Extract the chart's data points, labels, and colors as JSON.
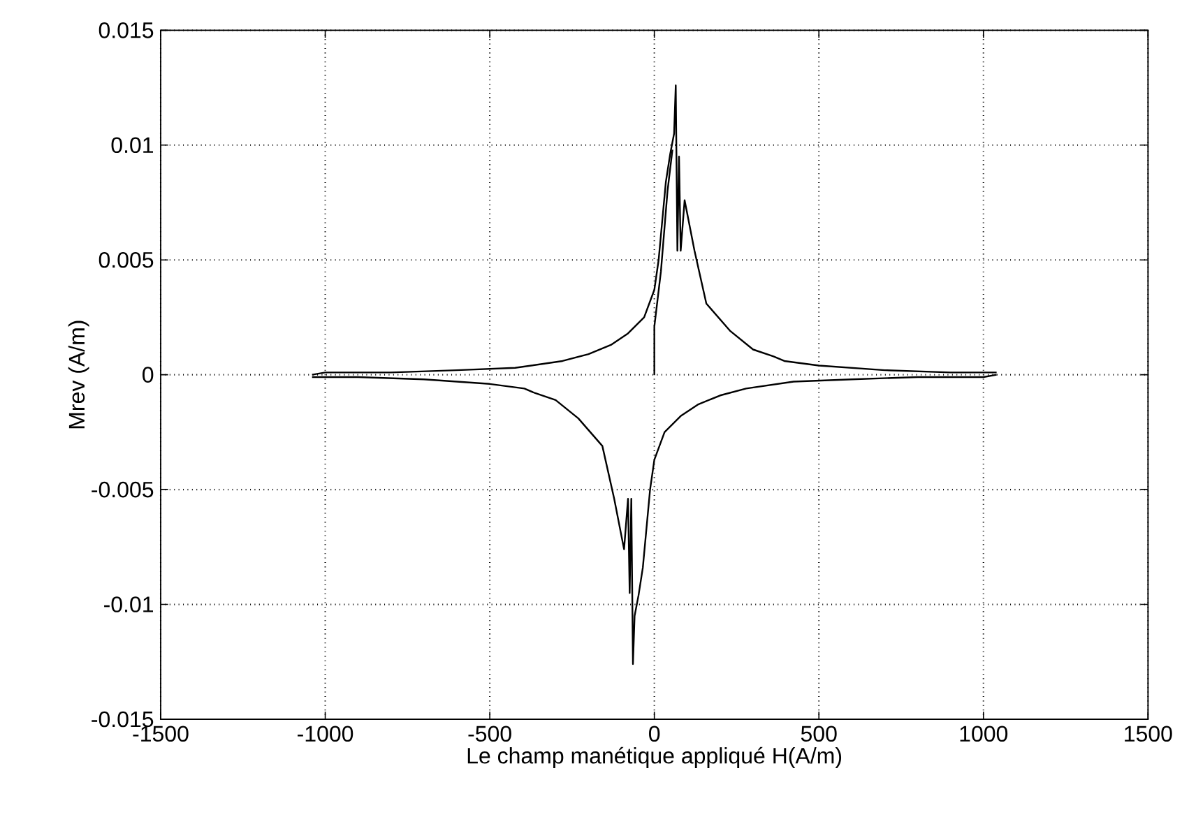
{
  "chart_data": {
    "type": "line",
    "xlabel": "Le champ manétique appliqué H(A/m)",
    "ylabel": "Mrev (A/m)",
    "xlim": [
      -1500,
      1500
    ],
    "ylim": [
      -0.015,
      0.015
    ],
    "xticks": [
      -1500,
      -1000,
      -500,
      0,
      500,
      1000,
      1500
    ],
    "yticks": [
      -0.015,
      -0.01,
      -0.005,
      0,
      0.005,
      0.01,
      0.015
    ],
    "grid": true,
    "line_style": "solid",
    "marker": "none",
    "series": [
      {
        "color": "#000000",
        "x": [
          -1040,
          -1000,
          -800,
          -600,
          -423,
          -279,
          -200,
          -132,
          -80,
          -31,
          0,
          13,
          35,
          48,
          60,
          65,
          70,
          75,
          80,
          92,
          122,
          158,
          231,
          300,
          362,
          395,
          500,
          700,
          900,
          1040
        ],
        "values": [
          0.0,
          0.0001,
          0.0001,
          0.0002,
          0.0003,
          0.0006,
          0.0009,
          0.0013,
          0.0018,
          0.0025,
          0.0037,
          0.005,
          0.0084,
          0.0096,
          0.0105,
          0.0126,
          0.0054,
          0.0095,
          0.0054,
          0.0076,
          0.0054,
          0.0031,
          0.0019,
          0.0011,
          0.0008,
          0.0006,
          0.0004,
          0.0002,
          0.0001,
          0.0001
        ]
      },
      {
        "color": "#000000",
        "x": [
          1040,
          1000,
          800,
          600,
          423,
          279,
          200,
          132,
          80,
          31,
          0,
          -13,
          -35,
          -48,
          -60,
          -65,
          -70,
          -75,
          -80,
          -92,
          -122,
          -158,
          -231,
          -300,
          -362,
          -395,
          -500,
          -700,
          -900,
          -1040
        ],
        "values": [
          0.0,
          -0.0001,
          -0.0001,
          -0.0002,
          -0.0003,
          -0.0006,
          -0.0009,
          -0.0013,
          -0.0018,
          -0.0025,
          -0.0037,
          -0.005,
          -0.0084,
          -0.0096,
          -0.0105,
          -0.0126,
          -0.0054,
          -0.0095,
          -0.0054,
          -0.0076,
          -0.0054,
          -0.0031,
          -0.0019,
          -0.0011,
          -0.0008,
          -0.0006,
          -0.0004,
          -0.0002,
          -0.0001,
          -0.0001
        ]
      },
      {
        "color": "#000000",
        "x": [
          0,
          0,
          20,
          40,
          55
        ],
        "values": [
          0,
          0.0021,
          0.0045,
          0.008,
          0.0098
        ]
      }
    ]
  }
}
